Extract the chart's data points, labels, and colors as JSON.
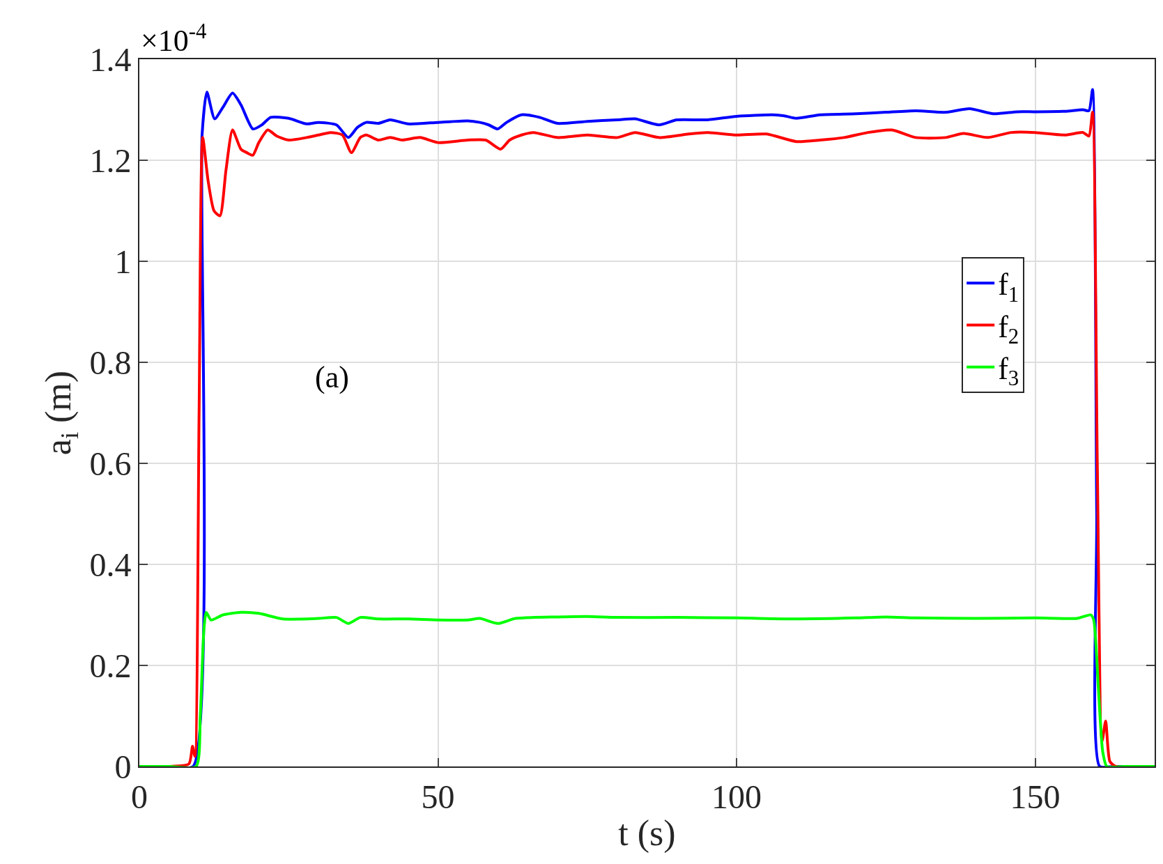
{
  "chart_data": {
    "type": "line",
    "xlabel": "t (s)",
    "ylabel": "a$_{i}$ (m)",
    "annotations": [
      "×10$^{-4}$",
      "(a)"
    ],
    "xlim": [
      0,
      170
    ],
    "xticks": [
      0,
      50,
      100,
      150
    ],
    "ylim": [
      0,
      1.4
    ],
    "yticks": [
      0,
      0.2,
      0.4,
      0.6,
      0.8,
      1,
      1.2,
      1.4
    ],
    "grid": true,
    "legend": "right",
    "line_style": "solid",
    "marker": "none",
    "series": [
      {
        "name": "f$_{1}$",
        "color": "#0000ff",
        "x": [
          0,
          5,
          9,
          10.5,
          11.3,
          12.6,
          14,
          15.6,
          17,
          19,
          20.5,
          22,
          25,
          28,
          30,
          33,
          35,
          36.5,
          38,
          40,
          42,
          45,
          50,
          55,
          57,
          58.5,
          60,
          61.5,
          64,
          67,
          70,
          75,
          80,
          83,
          87,
          90,
          95,
          100,
          106,
          108,
          110,
          114,
          120,
          125,
          130,
          135,
          139,
          143,
          147,
          150,
          155,
          158,
          159,
          159.6,
          160.3,
          160.8,
          163,
          170
        ],
        "values": [
          0,
          0,
          0,
          1.25,
          1.335,
          1.282,
          1.305,
          1.333,
          1.31,
          1.262,
          1.27,
          1.285,
          1.283,
          1.272,
          1.275,
          1.27,
          1.245,
          1.265,
          1.275,
          1.273,
          1.28,
          1.272,
          1.275,
          1.278,
          1.275,
          1.27,
          1.262,
          1.275,
          1.29,
          1.285,
          1.273,
          1.277,
          1.28,
          1.282,
          1.27,
          1.28,
          1.28,
          1.287,
          1.29,
          1.288,
          1.283,
          1.29,
          1.292,
          1.295,
          1.298,
          1.295,
          1.302,
          1.292,
          1.296,
          1.296,
          1.297,
          1.3,
          1.298,
          1.34,
          0.5,
          0,
          0,
          0
        ]
      },
      {
        "name": "f$_{2}$",
        "color": "#ff0000",
        "x": [
          0,
          5,
          8.3,
          8.9,
          9.3,
          10,
          10.6,
          11.5,
          12.5,
          13.5,
          14.5,
          15.6,
          17,
          18,
          19,
          20,
          21.5,
          23,
          25,
          28,
          30,
          32,
          34,
          35.5,
          37,
          38,
          40,
          42,
          44,
          47,
          50,
          55,
          58,
          60.5,
          62,
          64,
          66,
          70,
          75,
          80,
          83,
          87,
          92,
          95,
          100,
          105,
          110,
          114,
          118,
          122,
          126,
          130,
          135,
          138,
          142,
          146,
          150,
          155,
          158,
          159,
          159.6,
          160.4,
          161.2,
          161.8,
          162.5,
          163.5,
          170
        ],
        "values": [
          0,
          0,
          0.005,
          0.04,
          0.02,
          0.7,
          1.245,
          1.16,
          1.1,
          1.09,
          1.18,
          1.26,
          1.222,
          1.215,
          1.21,
          1.235,
          1.26,
          1.248,
          1.24,
          1.245,
          1.25,
          1.255,
          1.25,
          1.215,
          1.245,
          1.25,
          1.24,
          1.245,
          1.24,
          1.245,
          1.235,
          1.24,
          1.24,
          1.222,
          1.24,
          1.25,
          1.255,
          1.245,
          1.25,
          1.245,
          1.255,
          1.245,
          1.252,
          1.255,
          1.25,
          1.252,
          1.237,
          1.24,
          1.245,
          1.255,
          1.26,
          1.245,
          1.245,
          1.253,
          1.245,
          1.255,
          1.255,
          1.25,
          1.255,
          1.248,
          1.295,
          0.6,
          0.05,
          0.09,
          0.01,
          0,
          0
        ]
      },
      {
        "name": "f$_{3}$",
        "color": "#00ff00",
        "x": [
          0,
          5,
          9.5,
          10.2,
          10.8,
          11.2,
          12,
          14,
          17,
          20,
          24,
          30,
          33,
          35,
          37,
          40,
          45,
          50,
          55,
          57,
          60,
          63,
          70,
          75,
          80,
          90,
          100,
          110,
          120,
          125,
          130,
          140,
          150,
          157,
          159.3,
          159.8,
          160.6,
          161.3,
          162,
          165,
          170
        ],
        "values": [
          0,
          0,
          0,
          0.1,
          0.27,
          0.305,
          0.29,
          0.3,
          0.305,
          0.303,
          0.292,
          0.293,
          0.295,
          0.283,
          0.295,
          0.292,
          0.292,
          0.29,
          0.29,
          0.293,
          0.283,
          0.293,
          0.296,
          0.297,
          0.295,
          0.295,
          0.294,
          0.292,
          0.294,
          0.296,
          0.294,
          0.293,
          0.294,
          0.293,
          0.3,
          0.29,
          0.15,
          0.03,
          0,
          0,
          0
        ]
      }
    ]
  }
}
